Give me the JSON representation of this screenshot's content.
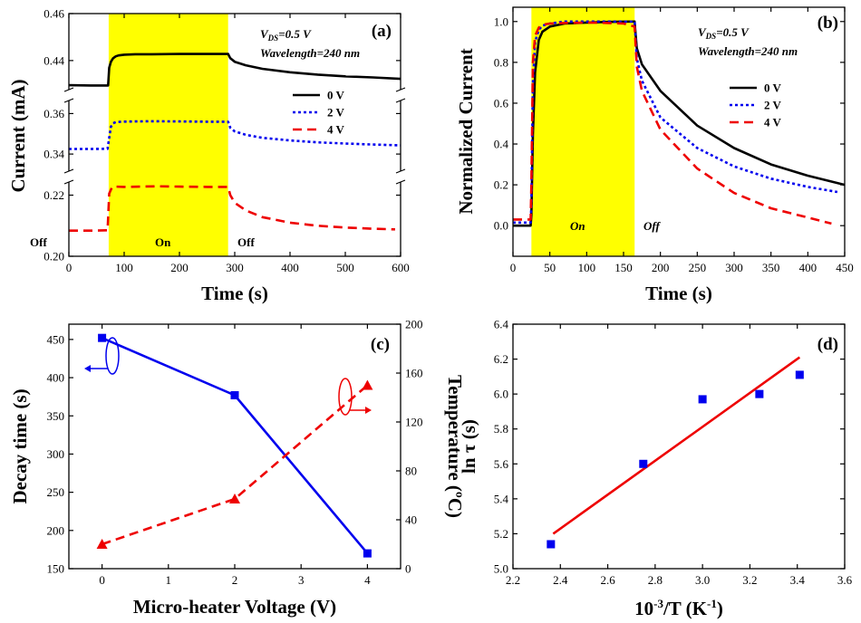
{
  "chart_data": [
    {
      "panel": "(a)",
      "type": "line",
      "xlabel": "Time (s)",
      "ylabel": "Current (mA)",
      "xlim": [
        0,
        600
      ],
      "xticks": [
        "0",
        "100",
        "200",
        "300",
        "400",
        "500",
        "600"
      ],
      "ybreak_segments": [
        {
          "ylim": [
            0.428,
            0.46
          ],
          "yticks": [
            "0.44",
            "0.46"
          ]
        },
        {
          "ylim": [
            0.332,
            0.366
          ],
          "yticks": [
            "0.34",
            "0.36"
          ]
        },
        {
          "ylim": [
            0.2,
            0.224
          ],
          "yticks": [
            "0.20",
            "0.22"
          ]
        }
      ],
      "annotations": {
        "vds": "V",
        "vds_sub": "DS",
        "vds_val": "=0.5 V",
        "wavelength": "Wavelength=240 nm",
        "off1": "Off",
        "on": "On",
        "off2": "Off"
      },
      "illumination": [
        72,
        288
      ],
      "series": [
        {
          "name": "0 V",
          "color": "#000000",
          "dash": "solid",
          "segment": 0,
          "x": [
            0,
            40,
            71,
            73,
            76,
            80,
            85,
            90,
            100,
            120,
            150,
            200,
            250,
            288,
            292,
            300,
            320,
            350,
            400,
            450,
            500,
            550,
            600
          ],
          "y": [
            0.4295,
            0.4294,
            0.4294,
            0.437,
            0.4395,
            0.441,
            0.4418,
            0.4422,
            0.4425,
            0.4427,
            0.4427,
            0.4428,
            0.4428,
            0.4428,
            0.441,
            0.4395,
            0.438,
            0.4365,
            0.435,
            0.434,
            0.4333,
            0.4328,
            0.4322
          ]
        },
        {
          "name": "2 V",
          "color": "#0000ee",
          "dash": "dot",
          "segment": 1,
          "x": [
            0,
            40,
            70,
            73,
            76,
            80,
            85,
            95,
            120,
            150,
            200,
            250,
            288,
            292,
            300,
            320,
            350,
            400,
            450,
            500,
            550,
            600
          ],
          "y": [
            0.3425,
            0.3425,
            0.3426,
            0.348,
            0.3535,
            0.3552,
            0.3558,
            0.356,
            0.3561,
            0.3562,
            0.3561,
            0.356,
            0.356,
            0.353,
            0.3512,
            0.3495,
            0.348,
            0.3467,
            0.3458,
            0.3452,
            0.3447,
            0.3443
          ]
        },
        {
          "name": "4 V",
          "color": "#ee0000",
          "dash": "dash",
          "segment": 2,
          "x": [
            0,
            40,
            70,
            73,
            78,
            85,
            100,
            130,
            160,
            200,
            250,
            288,
            292,
            300,
            320,
            350,
            400,
            450,
            500,
            550,
            590
          ],
          "y": [
            0.2084,
            0.2084,
            0.2085,
            0.2205,
            0.2226,
            0.2228,
            0.2227,
            0.2228,
            0.2229,
            0.2228,
            0.2227,
            0.2227,
            0.22,
            0.2175,
            0.215,
            0.2128,
            0.211,
            0.21,
            0.2094,
            0.209,
            0.2088
          ]
        }
      ]
    },
    {
      "panel": "(b)",
      "type": "line",
      "xlabel": "Time (s)",
      "ylabel": "Normalized Current",
      "xlim": [
        0,
        450
      ],
      "ylim": [
        -0.15,
        1.07
      ],
      "xticks": [
        "0",
        "50",
        "100",
        "150",
        "200",
        "250",
        "300",
        "350",
        "400",
        "450"
      ],
      "yticks": [
        "0.0",
        "0.2",
        "0.4",
        "0.6",
        "0.8",
        "1.0"
      ],
      "annotations": {
        "vds": "V",
        "vds_sub": "DS",
        "vds_val": "=0.5 V",
        "wavelength": "Wavelength=240 nm",
        "on": "On",
        "off": "Off"
      },
      "illumination": [
        25,
        165
      ],
      "series": [
        {
          "name": "0 V",
          "color": "#000000",
          "dash": "solid",
          "x": [
            0,
            24,
            25,
            27,
            30,
            35,
            40,
            50,
            70,
            100,
            130,
            160,
            165,
            168,
            175,
            200,
            250,
            300,
            350,
            400,
            450
          ],
          "y": [
            0.0,
            0.0,
            0.05,
            0.45,
            0.75,
            0.91,
            0.95,
            0.975,
            0.99,
            0.995,
            0.998,
            1.0,
            1.0,
            0.87,
            0.79,
            0.66,
            0.49,
            0.38,
            0.3,
            0.245,
            0.2
          ]
        },
        {
          "name": "2 V",
          "color": "#0000ee",
          "dash": "dot",
          "x": [
            0,
            24,
            25,
            27,
            30,
            35,
            40,
            50,
            70,
            100,
            130,
            160,
            165,
            168,
            175,
            200,
            250,
            300,
            350,
            400,
            440
          ],
          "y": [
            0.015,
            0.015,
            0.1,
            0.7,
            0.9,
            0.96,
            0.98,
            0.99,
            1.0,
            1.0,
            1.0,
            1.0,
            1.0,
            0.82,
            0.71,
            0.53,
            0.38,
            0.29,
            0.23,
            0.19,
            0.165
          ]
        },
        {
          "name": "4 V",
          "color": "#ee0000",
          "dash": "dash",
          "x": [
            0,
            24,
            25,
            27,
            30,
            35,
            40,
            50,
            70,
            100,
            130,
            150,
            165,
            168,
            175,
            200,
            250,
            300,
            350,
            400,
            432
          ],
          "y": [
            0.03,
            0.03,
            0.2,
            0.8,
            0.93,
            0.97,
            0.985,
            0.99,
            0.993,
            0.995,
            0.993,
            0.99,
            0.975,
            0.78,
            0.66,
            0.47,
            0.28,
            0.16,
            0.085,
            0.04,
            0.01
          ]
        }
      ]
    },
    {
      "panel": "(c)",
      "type": "line",
      "xlabel": "Micro-heater Voltage (V)",
      "ylabel": "Decay time (s)",
      "ylabel_right": "Temperature (ºC)",
      "xlim": [
        -0.5,
        4.5
      ],
      "ylim": [
        150,
        470
      ],
      "ylim_right": [
        0,
        200
      ],
      "xticks": [
        "0",
        "1",
        "2",
        "3",
        "4"
      ],
      "yticks": [
        "150",
        "200",
        "250",
        "300",
        "350",
        "400",
        "450"
      ],
      "yticks_right": [
        "0",
        "40",
        "80",
        "120",
        "160",
        "200"
      ],
      "series": [
        {
          "axis": "left",
          "color": "#0000ee",
          "dash": "solid",
          "marker": "square",
          "x": [
            0,
            2,
            4
          ],
          "y": [
            452,
            377,
            170
          ]
        },
        {
          "axis": "right",
          "color": "#ee0000",
          "dash": "dash",
          "marker": "triangle",
          "x": [
            0,
            2,
            4
          ],
          "y": [
            20,
            57,
            150
          ]
        }
      ]
    },
    {
      "panel": "(d)",
      "type": "scatter",
      "xlabel": "10",
      "xlabel_sup": "-3",
      "xlabel_mid": "/T (K",
      "xlabel_sup2": "-1",
      "xlabel_end": ")",
      "ylabel": "ln τ (s)",
      "xlim": [
        2.2,
        3.6
      ],
      "ylim": [
        5.0,
        6.4
      ],
      "xticks": [
        "2.2",
        "2.4",
        "2.6",
        "2.8",
        "3.0",
        "3.2",
        "3.4",
        "3.6"
      ],
      "yticks": [
        "5.0",
        "5.2",
        "5.4",
        "5.6",
        "5.8",
        "6.0",
        "6.2",
        "6.4"
      ],
      "points": {
        "x": [
          2.36,
          2.75,
          3.0,
          3.24,
          3.41
        ],
        "y": [
          5.14,
          5.6,
          5.97,
          6.0,
          6.11
        ],
        "color": "#0000ee"
      },
      "fit": {
        "x": [
          2.37,
          3.41
        ],
        "y": [
          5.2,
          6.21
        ],
        "color": "#ee0000"
      }
    }
  ]
}
